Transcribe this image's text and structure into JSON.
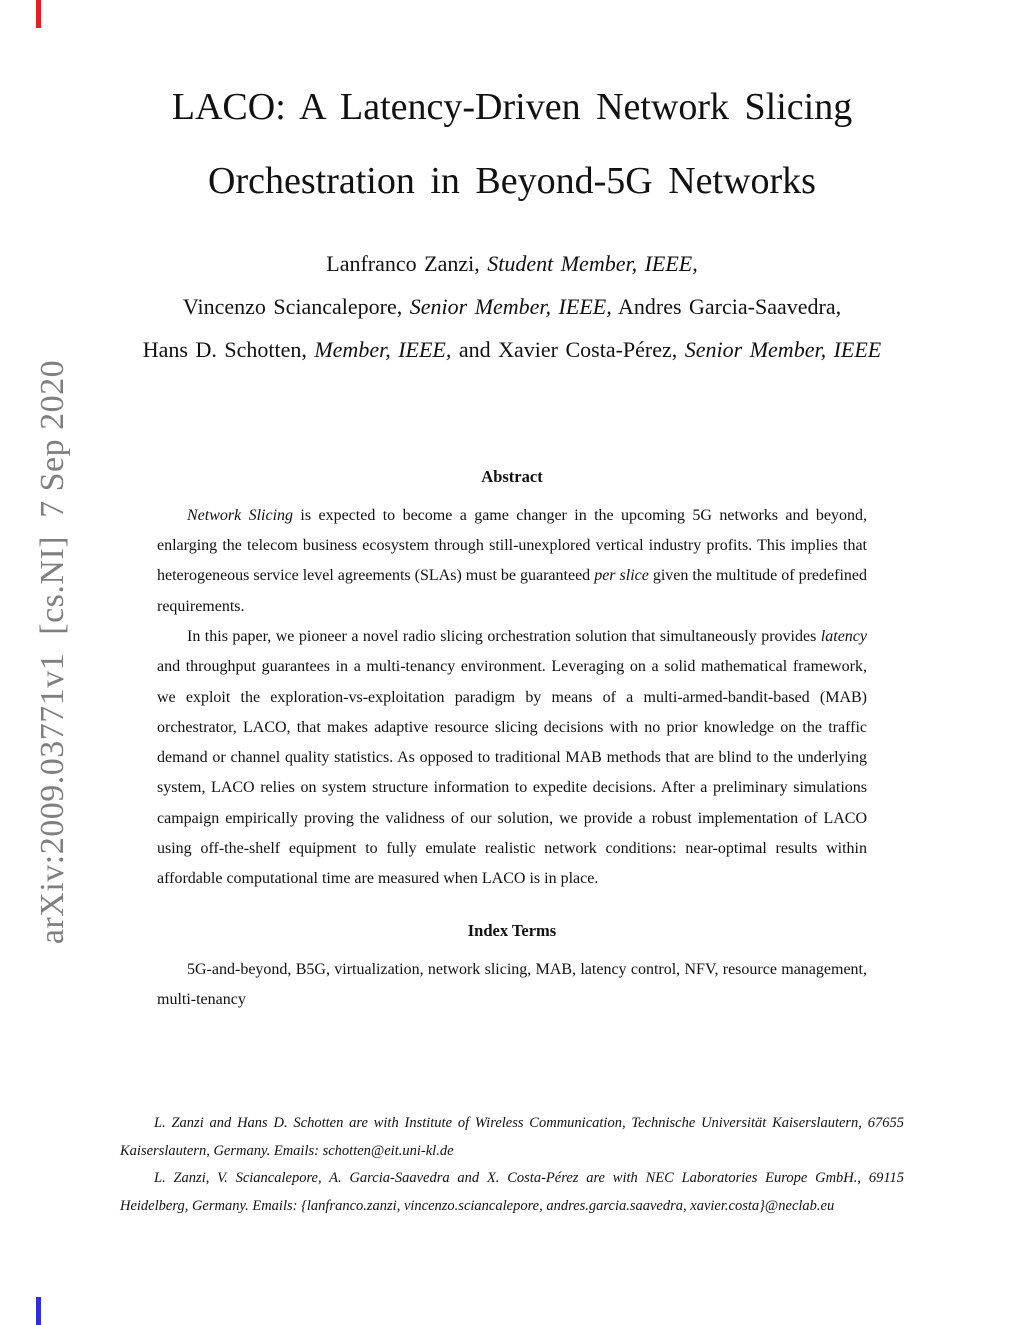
{
  "stamp": {
    "text": "arXiv:2009.03771v1  [cs.NI]  7 Sep 2020",
    "color": "#7f7f7f"
  },
  "marks": {
    "top_color": "#ed1c24",
    "bottom_color": "#2e2ee0"
  },
  "title": {
    "line1": "LACO: A Latency-Driven Network Slicing",
    "line2": "Orchestration in Beyond-5G Networks"
  },
  "authors": {
    "lines": [
      [
        {
          "t": "Lanfranco Zanzi, ",
          "i": false
        },
        {
          "t": "Student Member, IEEE,",
          "i": true
        }
      ],
      [
        {
          "t": "Vincenzo Sciancalepore, ",
          "i": false
        },
        {
          "t": "Senior Member, IEEE,",
          "i": true
        },
        {
          "t": " Andres Garcia-Saavedra,",
          "i": false
        }
      ],
      [
        {
          "t": "Hans D. Schotten, ",
          "i": false
        },
        {
          "t": "Member, IEEE,",
          "i": true
        },
        {
          "t": " and Xavier Costa-Pérez, ",
          "i": false
        },
        {
          "t": "Senior Member, IEEE",
          "i": true
        }
      ]
    ]
  },
  "abstract": {
    "heading": "Abstract",
    "paragraphs": [
      [
        {
          "t": "Network Slicing",
          "i": true
        },
        {
          "t": " is expected to become a game changer in the upcoming 5G networks and beyond, enlarging the telecom business ecosystem through still-unexplored vertical industry profits. This implies that heterogeneous service level agreements (SLAs) must be guaranteed ",
          "i": false
        },
        {
          "t": "per slice",
          "i": true
        },
        {
          "t": " given the multitude of predefined requirements.",
          "i": false
        }
      ],
      [
        {
          "t": "In this paper, we pioneer a novel radio slicing orchestration solution that simultaneously provides ",
          "i": false
        },
        {
          "t": "latency",
          "i": true
        },
        {
          "t": " and throughput guarantees in a multi-tenancy environment. Leveraging on a solid mathematical framework, we exploit the exploration-vs-exploitation paradigm by means of a multi-armed-bandit-based (MAB) orchestrator, LACO, that makes adaptive resource slicing decisions with no prior knowledge on the traffic demand or channel quality statistics. As opposed to traditional MAB methods that are blind to the underlying system, LACO relies on system structure information to expedite decisions. After a preliminary simulations campaign empirically proving the validness of our solution, we provide a robust implementation of LACO using off-the-shelf equipment to fully emulate realistic network conditions: near-optimal results within affordable computational time are measured when LACO is in place.",
          "i": false
        }
      ]
    ]
  },
  "index_terms": {
    "heading": "Index Terms",
    "text": "5G-and-beyond, B5G, virtualization, network slicing, MAB, latency control, NFV, resource man­agement, multi-tenancy"
  },
  "footnotes": {
    "items": [
      "L. Zanzi and Hans D. Schotten are with Institute of Wireless Communication, Technische Universität Kaiserslautern, 67655 Kaiserslautern, Germany. Emails: schotten@eit.uni-kl.de",
      "L. Zanzi, V. Sciancalepore, A. Garcia-Saavedra and X. Costa-Pérez are with NEC Laboratories Europe GmbH., 69115 Heidelberg, Germany. Emails: {lanfranco.zanzi, vincenzo.sciancalepore, andres.garcia.saavedra, xavier.costa}@neclab.eu"
    ]
  }
}
